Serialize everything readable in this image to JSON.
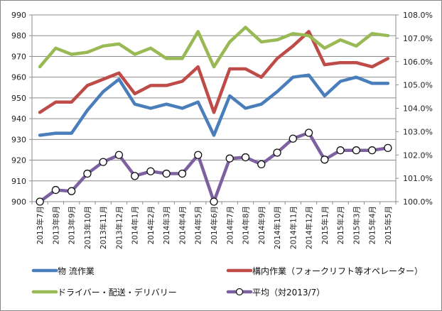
{
  "chart_data": {
    "type": "line",
    "title": "",
    "xlabel": "",
    "ylabel": "",
    "categories": [
      "2013年7月",
      "2013年8月",
      "2013年9月",
      "2013年10月",
      "2013年11月",
      "2013年12月",
      "2014年1月",
      "2014年2月",
      "2014年3月",
      "2014年4月",
      "2014年5月",
      "2014年6月",
      "2014年7月",
      "2014年8月",
      "2014年9月",
      "2014年10月",
      "2014年11月",
      "2014年12月",
      "2015年1月",
      "2015年2月",
      "2015年3月",
      "2015年4月",
      "2015年5月"
    ],
    "ylim": [
      900,
      990
    ],
    "y_ticks": [
      "900",
      "910",
      "920",
      "930",
      "940",
      "950",
      "960",
      "970",
      "980",
      "990"
    ],
    "y2lim": [
      100.0,
      108.0
    ],
    "y2_ticks": [
      "100.0%",
      "101.0%",
      "102.0%",
      "103.0%",
      "104.0%",
      "105.0%",
      "106.0%",
      "107.0%",
      "108.0%"
    ],
    "grid": true,
    "legend_position": "bottom",
    "series": [
      {
        "name": "物 流作業",
        "axis": "left",
        "color": "#4a7ebb",
        "marker": "none",
        "values": [
          932,
          933,
          933,
          944,
          953,
          959,
          947,
          945,
          947,
          945,
          948,
          932,
          951,
          945,
          947,
          953,
          960,
          961,
          951,
          958,
          960,
          957,
          957
        ]
      },
      {
        "name": "構内作業（フォークリフト等オペレーター）",
        "axis": "left",
        "color": "#be4b48",
        "marker": "none",
        "values": [
          943,
          948,
          948,
          956,
          959,
          962,
          952,
          956,
          956,
          958,
          965,
          943,
          964,
          964,
          960,
          969,
          975,
          982,
          966,
          967,
          967,
          965,
          969
        ]
      },
      {
        "name": "ドライバー・配送・デリバリー",
        "axis": "left",
        "color": "#98b954",
        "marker": "none",
        "values": [
          965,
          974,
          971,
          972,
          975,
          976,
          971,
          974,
          969,
          969,
          982,
          965,
          977,
          984,
          977,
          978,
          981,
          980,
          974,
          978,
          975,
          981,
          980
        ]
      },
      {
        "name": "平均（対2013/7）",
        "axis": "right",
        "color": "#7d60a0",
        "marker": "circle",
        "values": [
          100.0,
          100.5,
          100.45,
          101.2,
          101.7,
          102.0,
          101.1,
          101.3,
          101.2,
          101.2,
          102.0,
          100.0,
          101.85,
          101.9,
          101.6,
          102.1,
          102.7,
          102.95,
          101.8,
          102.2,
          102.2,
          102.2,
          102.3
        ]
      }
    ]
  }
}
